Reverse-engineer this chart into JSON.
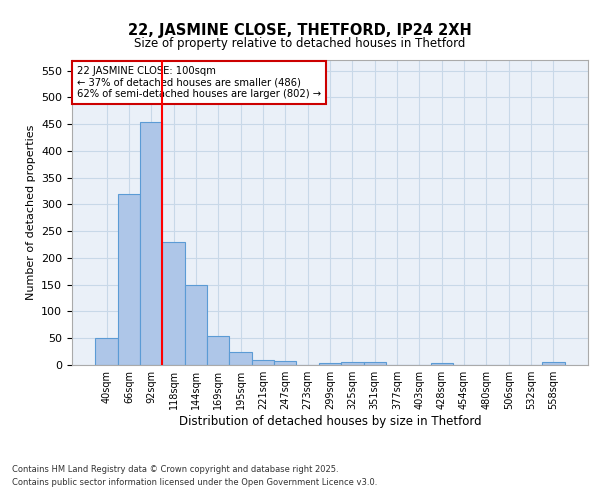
{
  "title": "22, JASMINE CLOSE, THETFORD, IP24 2XH",
  "subtitle": "Size of property relative to detached houses in Thetford",
  "xlabel": "Distribution of detached houses by size in Thetford",
  "ylabel": "Number of detached properties",
  "categories": [
    "40sqm",
    "66sqm",
    "92sqm",
    "118sqm",
    "144sqm",
    "169sqm",
    "195sqm",
    "221sqm",
    "247sqm",
    "273sqm",
    "299sqm",
    "325sqm",
    "351sqm",
    "377sqm",
    "403sqm",
    "428sqm",
    "454sqm",
    "480sqm",
    "506sqm",
    "532sqm",
    "558sqm"
  ],
  "values": [
    50,
    320,
    455,
    230,
    150,
    55,
    25,
    10,
    8,
    0,
    4,
    5,
    5,
    0,
    0,
    4,
    0,
    0,
    0,
    0,
    5
  ],
  "bar_color": "#aec6e8",
  "bar_edge_color": "#5b9bd5",
  "grid_color": "#c8d8e8",
  "bg_color": "#eaf0f8",
  "red_line_x": 2.5,
  "annotation_text": "22 JASMINE CLOSE: 100sqm\n← 37% of detached houses are smaller (486)\n62% of semi-detached houses are larger (802) →",
  "annotation_box_color": "#ffffff",
  "annotation_box_edge": "#cc0000",
  "footnote1": "Contains HM Land Registry data © Crown copyright and database right 2025.",
  "footnote2": "Contains public sector information licensed under the Open Government Licence v3.0.",
  "ylim": [
    0,
    570
  ],
  "yticks": [
    0,
    50,
    100,
    150,
    200,
    250,
    300,
    350,
    400,
    450,
    500,
    550
  ]
}
